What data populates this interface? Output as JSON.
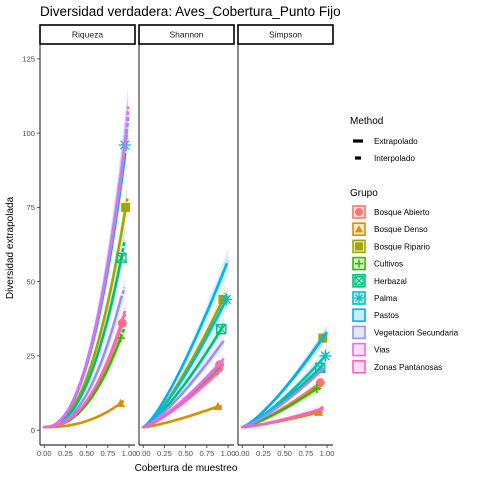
{
  "chart_data": {
    "type": "line",
    "title": "Diversidad verdadera: Aves_Cobertura_Punto Fijo",
    "xlabel": "Cobertura de muestreo",
    "ylabel": "Diversidad extrapolada",
    "xlim": [
      -0.05,
      1.07
    ],
    "ylim": [
      -5,
      130
    ],
    "x_ticks": [
      "0.00",
      "0.25",
      "0.50",
      "0.75",
      "1.00"
    ],
    "x_tick_values": [
      0,
      0.25,
      0.5,
      0.75,
      1.0
    ],
    "y_ticks": [
      "0",
      "25",
      "50",
      "75",
      "100",
      "125"
    ],
    "y_tick_values": [
      0,
      25,
      50,
      75,
      100,
      125
    ],
    "panel_background": "#ffffff",
    "grid": false,
    "legend_position": "right",
    "facets": [
      "Riqueza",
      "Shannon",
      "Simpson"
    ],
    "legend_method": {
      "title": "Method",
      "items": [
        {
          "label": "Extrapolado",
          "style": "solid"
        },
        {
          "label": "Interpolado",
          "style": "dashed"
        }
      ]
    },
    "legend_group": {
      "title": "Grupo",
      "items": [
        {
          "label": "Bosque Abierto",
          "color": "#F8766D",
          "shape": "circle"
        },
        {
          "label": "Bosque Denso",
          "color": "#D89000",
          "shape": "triangle"
        },
        {
          "label": "Bosque Ripario",
          "color": "#A3A500",
          "shape": "square"
        },
        {
          "label": "Cultivos",
          "color": "#39B600",
          "shape": "plus"
        },
        {
          "label": "Herbazal",
          "color": "#00BF7D",
          "shape": "boxx"
        },
        {
          "label": "Palma",
          "color": "#00BFC4",
          "shape": "asterisk"
        },
        {
          "label": "Pastos",
          "color": "#00B0F6",
          "shape": "none"
        },
        {
          "label": "Vegetacion Secundaria",
          "color": "#9590FF",
          "shape": "none"
        },
        {
          "label": "Vias",
          "color": "#E76BF3",
          "shape": "none"
        },
        {
          "label": "Zonas Pantanosas",
          "color": "#FF62BC",
          "shape": "none"
        }
      ]
    },
    "series": [
      {
        "group": "Bosque Abierto",
        "color": "#F8766D",
        "shape": "circle",
        "riqueza": {
          "x_obs": 0.92,
          "y_obs": 36,
          "x_end": 0.96,
          "y_end": 40
        },
        "shannon": {
          "x_obs": 0.9,
          "y_obs": 22,
          "x_end": 0.94,
          "y_end": 23
        },
        "simpson": {
          "x_obs": 0.92,
          "y_obs": 16,
          "x_end": 0.95,
          "y_end": 16
        }
      },
      {
        "group": "Bosque Denso",
        "color": "#D89000",
        "shape": "triangle",
        "riqueza": {
          "x_obs": 0.9,
          "y_obs": 9,
          "x_end": 0.94,
          "y_end": 10
        },
        "shannon": {
          "x_obs": 0.88,
          "y_obs": 8,
          "x_end": 0.93,
          "y_end": 8
        },
        "simpson": {
          "x_obs": 0.9,
          "y_obs": 6,
          "x_end": 0.95,
          "y_end": 6
        }
      },
      {
        "group": "Bosque Ripario",
        "color": "#A3A500",
        "shape": "square",
        "riqueza": {
          "x_obs": 0.96,
          "y_obs": 75,
          "x_end": 0.98,
          "y_end": 78
        },
        "shannon": {
          "x_obs": 0.94,
          "y_obs": 44,
          "x_end": 0.97,
          "y_end": 46
        },
        "simpson": {
          "x_obs": 0.95,
          "y_obs": 31,
          "x_end": 0.98,
          "y_end": 32
        }
      },
      {
        "group": "Cultivos",
        "color": "#39B600",
        "shape": "plus",
        "riqueza": {
          "x_obs": 0.9,
          "y_obs": 31,
          "x_end": 0.94,
          "y_end": 34
        },
        "shannon": {
          "x_obs": 0.88,
          "y_obs": 20,
          "x_end": 0.92,
          "y_end": 21
        },
        "simpson": {
          "x_obs": 0.88,
          "y_obs": 14,
          "x_end": 0.92,
          "y_end": 14
        }
      },
      {
        "group": "Herbazal",
        "color": "#00BF7D",
        "shape": "boxx",
        "riqueza": {
          "x_obs": 0.91,
          "y_obs": 58,
          "x_end": 0.95,
          "y_end": 64
        },
        "shannon": {
          "x_obs": 0.92,
          "y_obs": 34,
          "x_end": 0.95,
          "y_end": 36
        },
        "simpson": {
          "x_obs": 0.92,
          "y_obs": 21,
          "x_end": 0.95,
          "y_end": 22
        }
      },
      {
        "group": "Palma",
        "color": "#00BFC4",
        "shape": "asterisk",
        "riqueza": {
          "x_obs": 0.95,
          "y_obs": 96,
          "x_end": 0.98,
          "y_end": 104
        },
        "shannon": {
          "x_obs": 0.98,
          "y_obs": 44,
          "x_end": 1.0,
          "y_end": 45
        },
        "simpson": {
          "x_obs": 0.98,
          "y_obs": 25,
          "x_end": 1.0,
          "y_end": 26
        }
      },
      {
        "group": "Pastos",
        "color": "#00B0F6",
        "shape": "none",
        "riqueza": {
          "x_obs": 0.95,
          "y_obs": 92,
          "x_end": 0.99,
          "y_end": 106
        },
        "shannon": {
          "x_obs": 0.97,
          "y_obs": 55,
          "x_end": 1.0,
          "y_end": 57
        },
        "simpson": {
          "x_obs": 0.97,
          "y_obs": 32,
          "x_end": 1.0,
          "y_end": 33
        }
      },
      {
        "group": "Vegetacion Secundaria",
        "color": "#9590FF",
        "shape": "none",
        "riqueza": {
          "x_obs": 0.9,
          "y_obs": 44,
          "x_end": 0.95,
          "y_end": 48
        },
        "shannon": {
          "x_obs": 0.92,
          "y_obs": 29,
          "x_end": 0.95,
          "y_end": 30
        },
        "simpson": {
          "x_obs": 0.93,
          "y_obs": 20,
          "x_end": 0.96,
          "y_end": 21
        }
      },
      {
        "group": "Vias",
        "color": "#E76BF3",
        "shape": "none",
        "riqueza": {
          "x_obs": 0.97,
          "y_obs": 100,
          "x_end": 0.99,
          "y_end": 109
        },
        "shannon": {
          "x_obs": 0.92,
          "y_obs": 23,
          "x_end": 0.95,
          "y_end": 24
        },
        "simpson": {
          "x_obs": 0.93,
          "y_obs": 7,
          "x_end": 0.96,
          "y_end": 7
        }
      },
      {
        "group": "Zonas Pantanosas",
        "color": "#FF62BC",
        "shape": "none",
        "riqueza": {
          "x_obs": 0.92,
          "y_obs": 37,
          "x_end": 0.95,
          "y_end": 40
        },
        "shannon": {
          "x_obs": 0.9,
          "y_obs": 20,
          "x_end": 0.94,
          "y_end": 21
        },
        "simpson": {
          "x_obs": 0.92,
          "y_obs": 7,
          "x_end": 0.95,
          "y_end": 8
        }
      }
    ]
  }
}
